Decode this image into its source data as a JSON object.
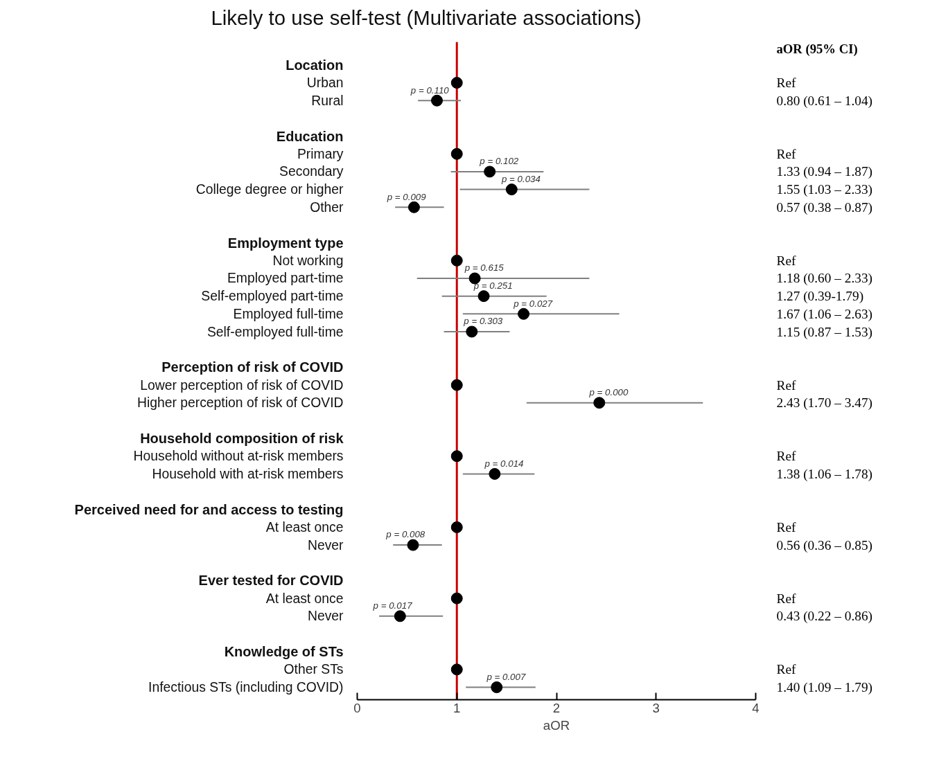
{
  "chart_data": {
    "type": "scatter",
    "orientation": "horizontal",
    "title": "Likely to use self-test (Multivariate associations)",
    "xlabel": "aOR",
    "y2label": "aOR (95% CI)",
    "marker": "circle",
    "color": "#000000",
    "xlim": [
      0,
      4
    ],
    "xticks": [
      0,
      1,
      2,
      3,
      4
    ],
    "categories": [
      "Location",
      "Urban",
      "Rural",
      null,
      "Education",
      "Primary",
      "Secondary",
      "College degree or higher",
      "Other",
      null,
      "Employment type",
      "Not working",
      "Employed part-time",
      "Self-employed part-time",
      "Employed full-time",
      "Self-employed full-time",
      null,
      "Perception of risk of COVID",
      "Lower perception of risk of COVID",
      "Higher perception of risk of COVID",
      null,
      "Household composition of risk",
      "Household without at-risk members",
      "Household with at-risk members",
      null,
      "Perceived need for and access to testing",
      "At least once",
      "Never",
      null,
      "Ever tested for COVID",
      "At least once",
      "Never",
      null,
      "Knowledge of STs",
      "Other STs",
      "Infectious STs (including COVID)"
    ],
    "values": [
      null,
      1,
      0.8,
      null,
      null,
      1,
      1.33,
      1.55,
      0.57,
      null,
      null,
      1,
      1.18,
      1.27,
      1.67,
      1.15,
      null,
      null,
      1,
      2.43,
      null,
      null,
      1,
      1.38,
      null,
      null,
      1,
      0.56,
      null,
      null,
      1,
      0.43,
      null,
      null,
      1,
      1.4
    ],
    "errors": [
      null,
      null,
      [
        0.61,
        1.04
      ],
      null,
      null,
      null,
      [
        0.94,
        1.87
      ],
      [
        1.03,
        2.33
      ],
      [
        0.38,
        0.87
      ],
      null,
      null,
      null,
      [
        0.6,
        2.33
      ],
      [
        0.85,
        1.9
      ],
      [
        1.06,
        2.63
      ],
      [
        0.87,
        1.53
      ],
      null,
      null,
      null,
      [
        1.7,
        3.47
      ],
      null,
      null,
      null,
      [
        1.06,
        1.78
      ],
      null,
      null,
      null,
      [
        0.36,
        0.85
      ],
      null,
      null,
      null,
      [
        0.22,
        0.86
      ],
      null,
      null,
      null,
      [
        1.09,
        1.79
      ]
    ],
    "y2_categories": [
      null,
      "Ref",
      "0.80 (0.61 – 1.04)",
      null,
      null,
      "Ref",
      "1.33 (0.94 – 1.87)",
      "1.55 (1.03 – 2.33)",
      "0.57 (0.38 – 0.87)",
      null,
      null,
      "Ref",
      "1.18 (0.60 – 2.33)",
      "1.27 (0.39-1.79)",
      "1.67 (1.06 – 2.63)",
      "1.15 (0.87 – 1.53)",
      null,
      null,
      "Ref",
      "2.43 (1.70 – 3.47)",
      null,
      null,
      "Ref",
      "1.38 (1.06 – 1.78)",
      null,
      null,
      "Ref",
      "0.56 (0.36 – 0.85)",
      null,
      null,
      "Ref",
      "0.43 (0.22 – 0.86)",
      null,
      null,
      "Ref",
      "1.40 (1.09 – 1.79)"
    ],
    "annotations": [
      "p = 0.110",
      "p = 0.102",
      "p = 0.034",
      "p = 0.009",
      "p = 0.615",
      "p = 0.251",
      "p = 0.027",
      "p = 0.303",
      "p = 0.000",
      "p = 0.014",
      "p = 0.008",
      "p = 0.017",
      "p = 0.007"
    ],
    "ref_lines": [
      {
        "axis": "x",
        "value": 1,
        "color": "#cc0000"
      }
    ]
  }
}
